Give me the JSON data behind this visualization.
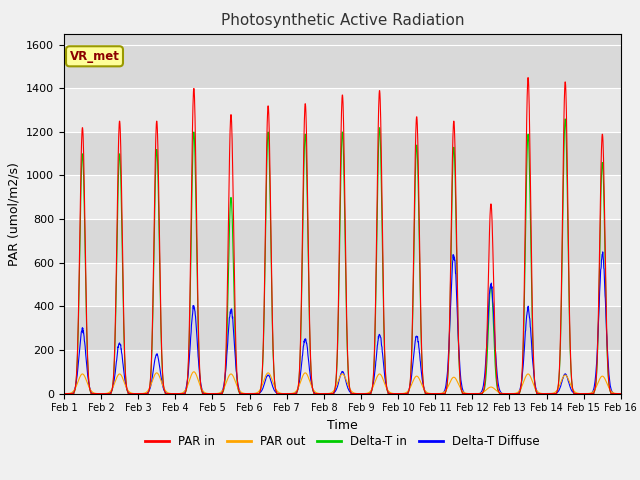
{
  "title": "Photosynthetic Active Radiation",
  "xlabel": "Time",
  "ylabel": "PAR (umol/m2/s)",
  "ylim": [
    0,
    1650
  ],
  "yticks": [
    0,
    200,
    400,
    600,
    800,
    1000,
    1200,
    1400,
    1600
  ],
  "xtick_labels": [
    "Feb 1",
    "Feb 2",
    "Feb 3",
    "Feb 4",
    "Feb 5",
    "Feb 6",
    "Feb 7",
    "Feb 8",
    "Feb 9",
    "Feb 10",
    "Feb 11",
    "Feb 12",
    "Feb 13",
    "Feb 14",
    "Feb 15",
    "Feb 16"
  ],
  "colors": {
    "par_in": "#ff0000",
    "par_out": "#ffa500",
    "delta_t_in": "#00cc00",
    "delta_t_diffuse": "#0000ff"
  },
  "legend_labels": [
    "PAR in",
    "PAR out",
    "Delta-T in",
    "Delta-T Diffuse"
  ],
  "vr_met_box": "VR_met",
  "background_color": "#d9d9d9",
  "fig_background": "#f0f0f0",
  "par_in_peaks": [
    1220,
    1250,
    1250,
    1400,
    1280,
    1320,
    1330,
    1370,
    1390,
    1270,
    1250,
    870,
    1450,
    1430,
    1190
  ],
  "par_out_peaks": [
    90,
    90,
    95,
    100,
    90,
    95,
    95,
    90,
    90,
    80,
    75,
    30,
    90,
    85,
    80
  ],
  "delta_t_in_peaks": [
    1100,
    1100,
    1120,
    1200,
    900,
    1200,
    1190,
    1200,
    1220,
    1140,
    1130,
    500,
    1190,
    1260,
    1060
  ],
  "delta_t_diffuse_peaks": [
    295,
    230,
    180,
    400,
    385,
    85,
    250,
    100,
    270,
    265,
    635,
    500,
    390,
    90,
    640
  ],
  "days": 15,
  "pts_per_day": 144
}
